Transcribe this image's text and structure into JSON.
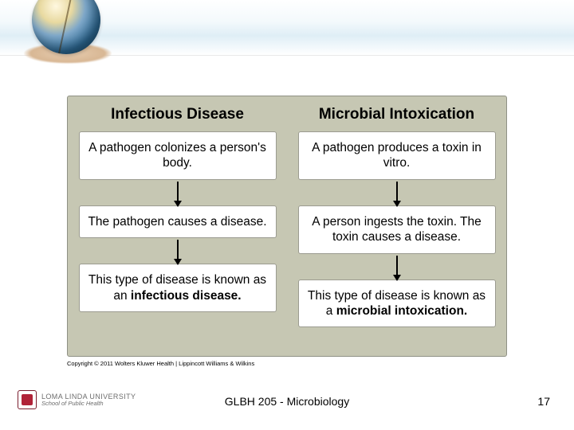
{
  "diagram": {
    "background": "#c6c7b3",
    "border": "#8f9185",
    "box_bg": "#ffffff",
    "box_border": "#9b9b90",
    "left": {
      "title": "Infectious Disease",
      "step1": "A pathogen colonizes a person's body.",
      "step2": "The pathogen causes a disease.",
      "step3_pre": "This type of disease is known as an ",
      "step3_bold": "infectious disease."
    },
    "right": {
      "title": "Microbial Intoxication",
      "step1": "A pathogen produces a toxin in vitro.",
      "step2": "A person ingests the toxin. The toxin causes a disease.",
      "step3_pre": "This type of disease is known as a ",
      "step3_bold": "microbial intoxication."
    }
  },
  "copyright": "Copyright © 2011 Wolters Kluwer Health | Lippincott Williams & Wilkins",
  "logo": {
    "line1": "LOMA LINDA UNIVERSITY",
    "line2": "School of Public Health"
  },
  "footer": "GLBH 205 - Microbiology",
  "page": "17"
}
